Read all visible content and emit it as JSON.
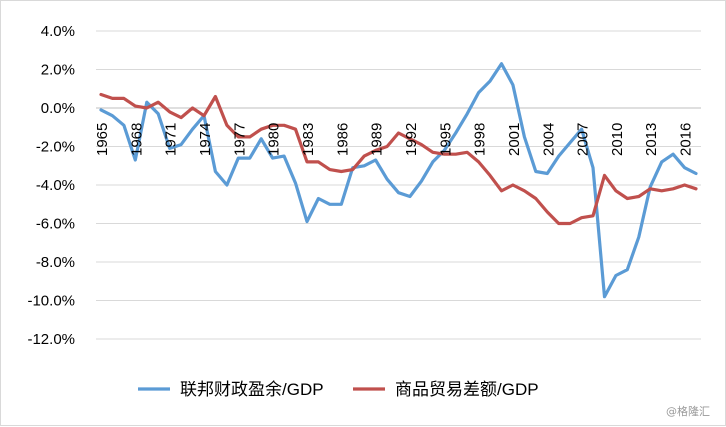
{
  "chart_data": {
    "type": "line",
    "title": "",
    "xlabel": "",
    "ylabel": "",
    "ylim": [
      -12,
      4
    ],
    "y_ticks": [
      4,
      2,
      0,
      -2,
      -4,
      -6,
      -8,
      -10,
      -12
    ],
    "y_tick_labels": [
      "4.0%",
      "2.0%",
      "0.0%",
      "-2.0%",
      "-4.0%",
      "-6.0%",
      "-8.0%",
      "-10.0%",
      "-12.0%"
    ],
    "x_tick_labels": [
      "1965",
      "1968",
      "1971",
      "1974",
      "1977",
      "1980",
      "1983",
      "1986",
      "1989",
      "1992",
      "1995",
      "1998",
      "2001",
      "2004",
      "2007",
      "2010",
      "2013",
      "2016"
    ],
    "grid": true,
    "legend_position": "bottom",
    "x": [
      1965,
      1966,
      1967,
      1968,
      1969,
      1970,
      1971,
      1972,
      1973,
      1974,
      1975,
      1976,
      1977,
      1978,
      1979,
      1980,
      1981,
      1982,
      1983,
      1984,
      1985,
      1986,
      1987,
      1988,
      1989,
      1990,
      1991,
      1992,
      1993,
      1994,
      1995,
      1996,
      1997,
      1998,
      1999,
      2000,
      2001,
      2002,
      2003,
      2004,
      2005,
      2006,
      2007,
      2008,
      2009,
      2010,
      2011,
      2012,
      2013,
      2014,
      2015,
      2016,
      2017
    ],
    "series": [
      {
        "name": "联邦财政盈余/GDP",
        "color": "#5b9bd5",
        "values": [
          -0.1,
          -0.4,
          -0.9,
          -2.7,
          0.3,
          -0.3,
          -2.1,
          -1.9,
          -1.1,
          -0.4,
          -3.3,
          -4.0,
          -2.6,
          -2.6,
          -1.6,
          -2.6,
          -2.5,
          -3.9,
          -5.9,
          -4.7,
          -5.0,
          -5.0,
          -3.1,
          -3.0,
          -2.7,
          -3.7,
          -4.4,
          -4.6,
          -3.8,
          -2.8,
          -2.2,
          -1.3,
          -0.3,
          0.8,
          1.4,
          2.3,
          1.2,
          -1.5,
          -3.3,
          -3.4,
          -2.5,
          -1.8,
          -1.1,
          -3.1,
          -9.8,
          -8.7,
          -8.4,
          -6.7,
          -4.1,
          -2.8,
          -2.4,
          -3.1,
          -3.4
        ]
      },
      {
        "name": "商品贸易差额/GDP",
        "color": "#c0504d",
        "values": [
          0.7,
          0.5,
          0.5,
          0.1,
          0.0,
          0.3,
          -0.2,
          -0.5,
          0.0,
          -0.4,
          0.6,
          -0.9,
          -1.5,
          -1.5,
          -1.1,
          -0.9,
          -0.9,
          -1.1,
          -2.8,
          -2.8,
          -3.2,
          -3.3,
          -3.2,
          -2.5,
          -2.2,
          -2.0,
          -1.3,
          -1.6,
          -1.9,
          -2.3,
          -2.4,
          -2.4,
          -2.3,
          -2.8,
          -3.5,
          -4.3,
          -4.0,
          -4.3,
          -4.7,
          -5.4,
          -6.0,
          -6.0,
          -5.7,
          -5.6,
          -3.5,
          -4.3,
          -4.7,
          -4.6,
          -4.2,
          -4.3,
          -4.2,
          -4.0,
          -4.2
        ]
      }
    ]
  },
  "watermark": "@格隆汇"
}
